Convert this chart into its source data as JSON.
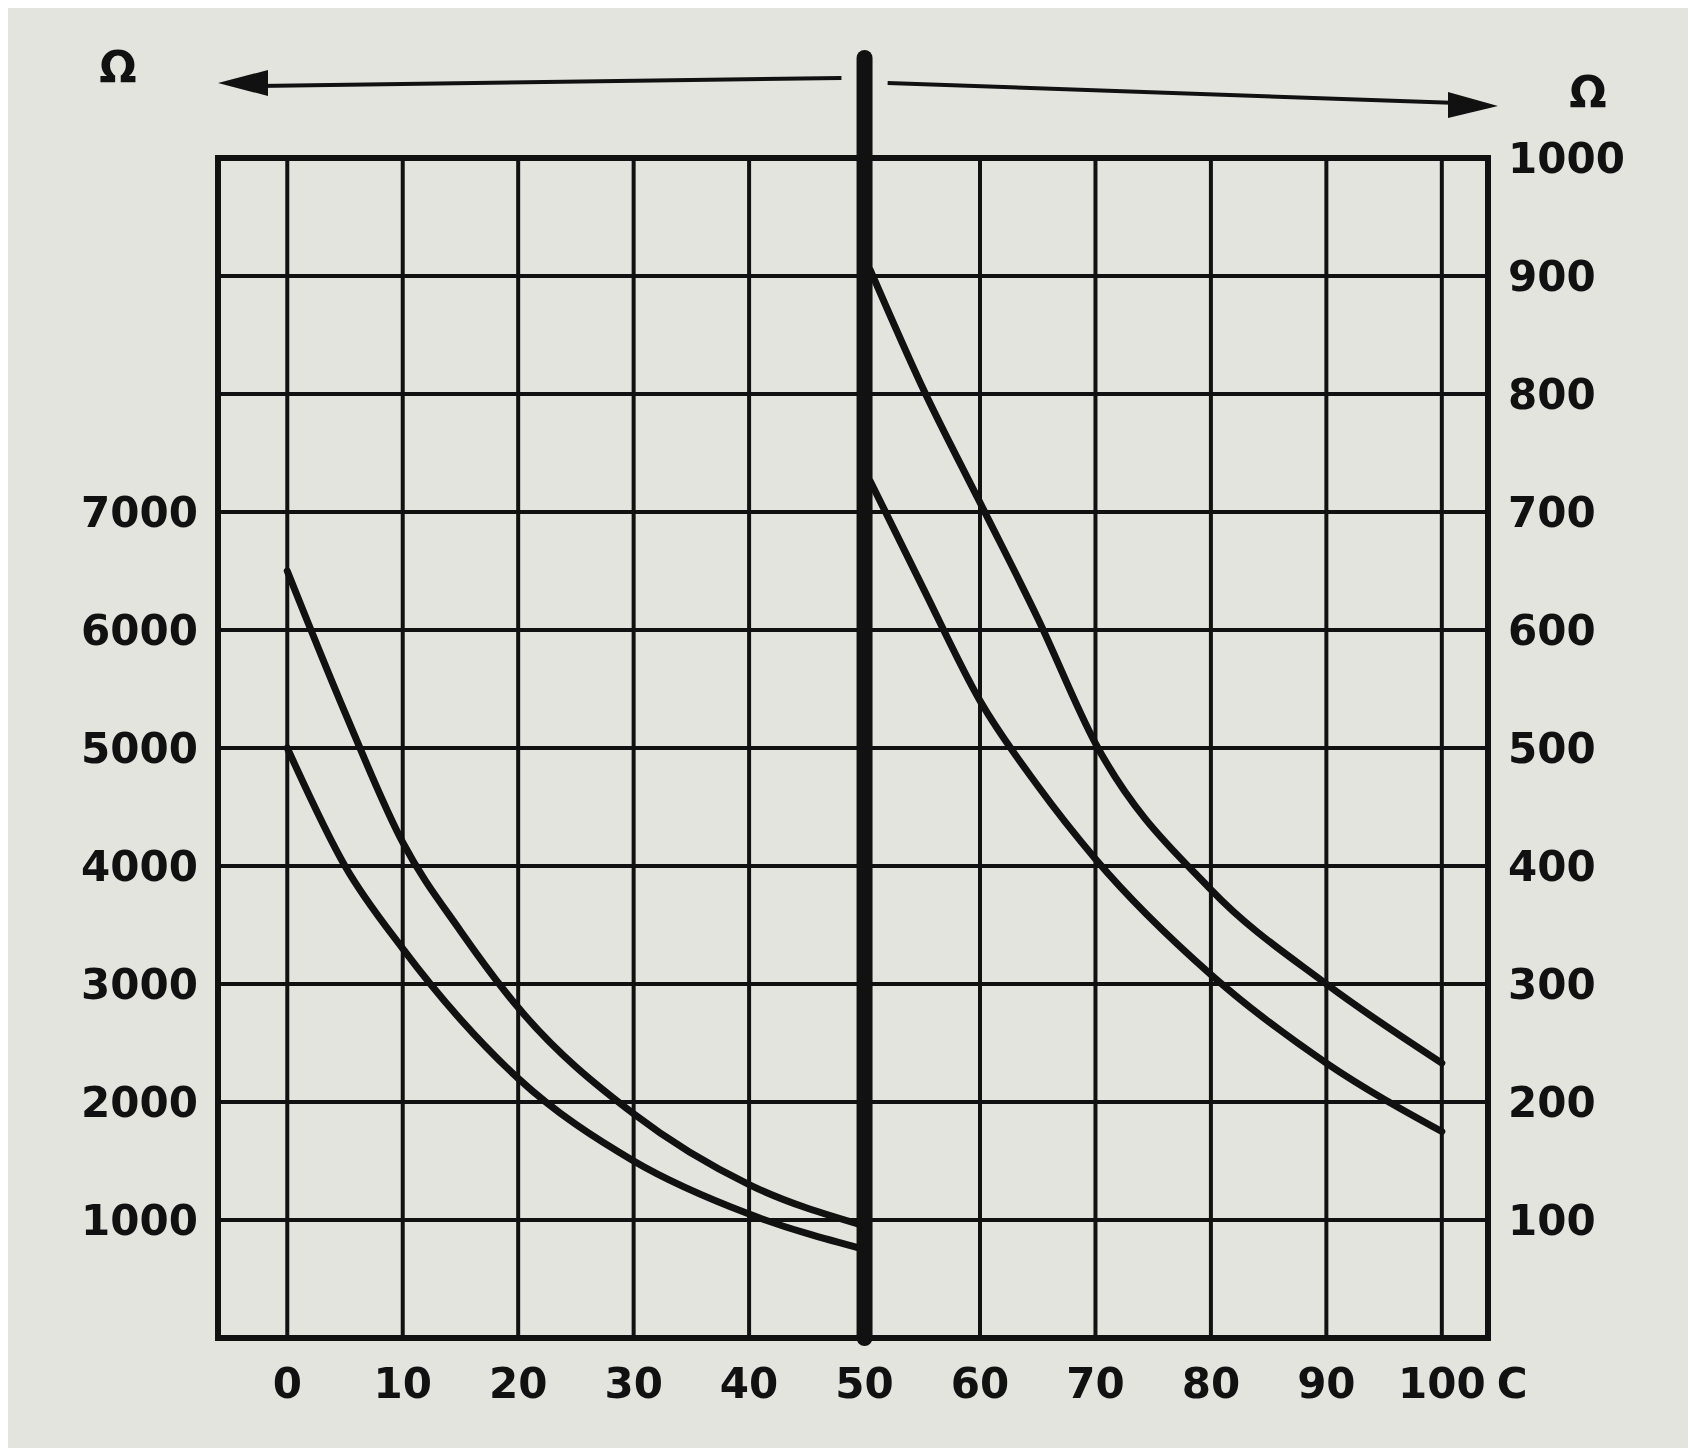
{
  "chart_data": {
    "type": "line",
    "xlabel": "C",
    "ylabel": "Ω",
    "y2label": "Ω",
    "xlim": [
      -6,
      104
    ],
    "xticks": [
      0,
      10,
      20,
      30,
      40,
      50,
      60,
      70,
      80,
      90,
      100
    ],
    "ylim": [
      0,
      10000
    ],
    "yticks": [
      1000,
      2000,
      3000,
      4000,
      5000,
      6000,
      7000,
      {
        "value": 8000,
        "label": null
      },
      {
        "value": 9000,
        "label": null
      }
    ],
    "y2lim": [
      0,
      1000
    ],
    "y2ticks": [
      100,
      200,
      300,
      400,
      500,
      600,
      700,
      800,
      900,
      1000
    ],
    "grid": true,
    "marker": "none",
    "line_style": "solid",
    "ref_lines": [
      {
        "axis": "x",
        "value": 50,
        "color": "#111111"
      }
    ],
    "series": [
      {
        "color": "#111111",
        "x": [
          0,
          5,
          10,
          15,
          20,
          30,
          40,
          50
        ],
        "values": [
          6500,
          5300,
          4200,
          3450,
          2800,
          1900,
          1300,
          950
        ]
      },
      {
        "color": "#111111",
        "x": [
          0,
          5,
          10,
          15,
          20,
          30,
          40,
          50
        ],
        "values": [
          5000,
          4000,
          3300,
          2700,
          2200,
          1500,
          1050,
          750
        ]
      },
      {
        "color": "#111111",
        "axis": "y2",
        "x": [
          50.5,
          55,
          60,
          65,
          70,
          80,
          90,
          100
        ],
        "values": [
          905,
          806,
          708,
          610,
          504,
          380,
          300,
          233
        ]
      },
      {
        "color": "#111111",
        "axis": "y2",
        "x": [
          50.5,
          55,
          60,
          65,
          70,
          80,
          90,
          100
        ],
        "values": [
          726,
          637,
          540,
          468,
          406,
          308,
          233,
          175
        ]
      }
    ]
  }
}
